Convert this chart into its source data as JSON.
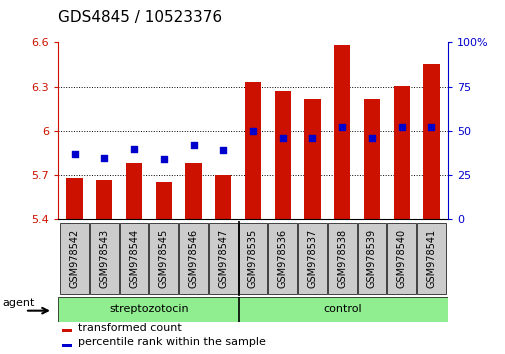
{
  "title": "GDS4845 / 10523376",
  "samples": [
    "GSM978542",
    "GSM978543",
    "GSM978544",
    "GSM978545",
    "GSM978546",
    "GSM978547",
    "GSM978535",
    "GSM978536",
    "GSM978537",
    "GSM978538",
    "GSM978539",
    "GSM978540",
    "GSM978541"
  ],
  "bar_values": [
    5.68,
    5.67,
    5.78,
    5.655,
    5.78,
    5.7,
    6.33,
    6.27,
    6.22,
    6.585,
    6.22,
    6.305,
    6.455
  ],
  "dot_values": [
    37,
    35,
    40,
    34,
    42,
    39,
    50,
    46,
    46,
    52,
    46,
    52,
    52
  ],
  "n_strep": 6,
  "n_control": 7,
  "group_labels": [
    "streptozotocin",
    "control"
  ],
  "bar_color": "#CC1100",
  "dot_color": "#0000CC",
  "green_color": "#90EE90",
  "gray_color": "#CCCCCC",
  "ymin": 5.4,
  "ymax": 6.6,
  "yticks": [
    5.4,
    5.7,
    6.0,
    6.3,
    6.6
  ],
  "ytick_labels": [
    "5.4",
    "5.7",
    "6",
    "6.3",
    "6.6"
  ],
  "yright_ticks": [
    0,
    25,
    50,
    75,
    100
  ],
  "yright_labels": [
    "0",
    "25",
    "50",
    "75",
    "100%"
  ],
  "ylabel_color": "#CC1100",
  "ylabel_right_color": "#0000CC",
  "bar_bottom": 5.4,
  "title_fontsize": 11,
  "agent_label": "agent",
  "legend_items": [
    {
      "label": "transformed count",
      "color": "#CC1100"
    },
    {
      "label": "percentile rank within the sample",
      "color": "#0000CC"
    }
  ]
}
